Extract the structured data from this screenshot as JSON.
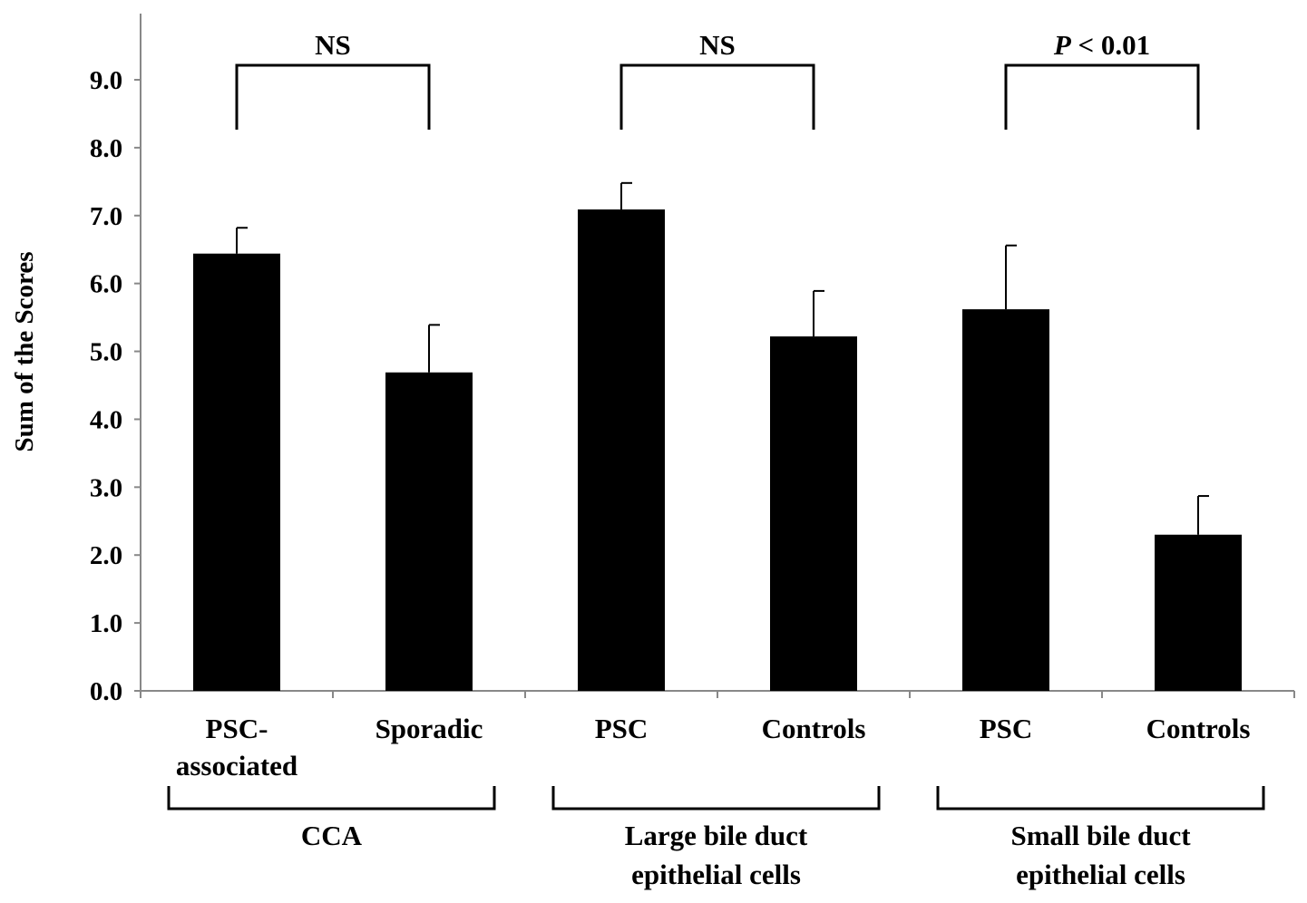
{
  "chart_data": {
    "type": "bar",
    "title": "",
    "xlabel": "",
    "ylabel": "Sum of the Scores",
    "ylim": [
      0,
      9.0
    ],
    "yticks": [
      "0.0",
      "1.0",
      "2.0",
      "3.0",
      "4.0",
      "5.0",
      "6.0",
      "7.0",
      "8.0",
      "9.0"
    ],
    "grid": false,
    "categories": [
      [
        "PSC-",
        "associated"
      ],
      [
        "Sporadic"
      ],
      [
        "PSC"
      ],
      [
        "Controls"
      ],
      [
        "PSC"
      ],
      [
        "Controls"
      ]
    ],
    "values": [
      6.44,
      4.69,
      7.09,
      5.22,
      5.62,
      2.3
    ],
    "error_upper": [
      0.38,
      0.7,
      0.39,
      0.67,
      0.94,
      0.57
    ],
    "bar_color": "#000000",
    "groups": [
      {
        "label": [
          "CCA"
        ],
        "members": [
          0,
          1
        ],
        "comparison": {
          "label": "NS",
          "italic_prefix": ""
        }
      },
      {
        "label": [
          "Large bile duct",
          "epithelial cells"
        ],
        "members": [
          2,
          3
        ],
        "comparison": {
          "label": "NS",
          "italic_prefix": ""
        }
      },
      {
        "label": [
          "Small bile duct",
          "epithelial cells"
        ],
        "members": [
          4,
          5
        ],
        "comparison": {
          "label": " < 0.01",
          "italic_prefix": "P"
        }
      }
    ]
  }
}
